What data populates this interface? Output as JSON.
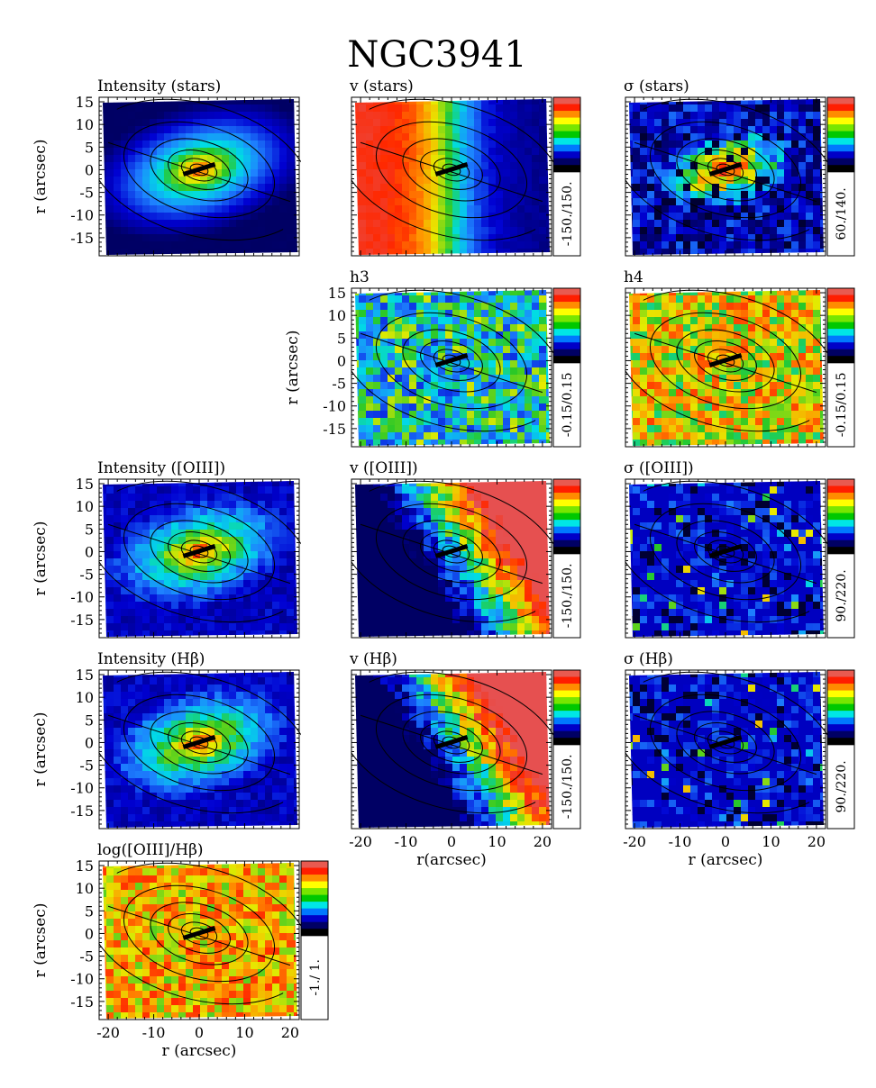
{
  "figure_title": "NGC3941",
  "colorbar_colors": [
    "#ffffff",
    "#e85a50",
    "#ff1e00",
    "#ff8c00",
    "#ffff00",
    "#78e600",
    "#00c800",
    "#00e6e6",
    "#0078ff",
    "#0000c8",
    "#000064",
    "#000000"
  ],
  "chart_data": [
    {
      "type": "heatmap",
      "title": "Intensity (stars)",
      "map": "intensity",
      "ylabel": "r (arcsec)",
      "xlabel": "",
      "range_label": "",
      "xlim": [
        -22,
        22
      ],
      "ylim": [
        -19,
        16
      ],
      "xticks": [],
      "yticks": [
        "15",
        "10",
        "5",
        "0",
        "-5",
        "-10",
        "-15"
      ]
    },
    {
      "type": "heatmap",
      "title": "v (stars)",
      "map": "velocity",
      "ylabel": "",
      "xlabel": "",
      "range_label": "-150./150.",
      "xlim": [
        -22,
        22
      ],
      "ylim": [
        -19,
        16
      ],
      "xticks": [],
      "yticks": []
    },
    {
      "type": "heatmap",
      "title": "σ (stars)",
      "map": "sigma",
      "ylabel": "",
      "xlabel": "",
      "range_label": "60./140.",
      "xlim": [
        -22,
        22
      ],
      "ylim": [
        -19,
        16
      ],
      "xticks": [],
      "yticks": []
    },
    {
      "type": "heatmap",
      "title": "h3",
      "map": "h3",
      "ylabel": "r (arcsec)",
      "xlabel": "",
      "range_label": "-0.15/0.15",
      "xlim": [
        -22,
        22
      ],
      "ylim": [
        -19,
        16
      ],
      "xticks": [],
      "yticks": [
        "15",
        "10",
        "5",
        "0",
        "-5",
        "-10",
        "-15"
      ]
    },
    {
      "type": "heatmap",
      "title": "h4",
      "map": "h4",
      "ylabel": "",
      "xlabel": "",
      "range_label": "-0.15/0.15",
      "xlim": [
        -22,
        22
      ],
      "ylim": [
        -19,
        16
      ],
      "xticks": [],
      "yticks": []
    },
    {
      "type": "heatmap",
      "title": "Intensity ([OIII])",
      "map": "intensity_gas",
      "ylabel": "r (arcsec)",
      "xlabel": "",
      "range_label": "",
      "xlim": [
        -22,
        22
      ],
      "ylim": [
        -19,
        16
      ],
      "xticks": [],
      "yticks": [
        "15",
        "10",
        "5",
        "0",
        "-5",
        "-10",
        "-15"
      ]
    },
    {
      "type": "heatmap",
      "title": "v ([OIII])",
      "map": "velocity_gas",
      "ylabel": "",
      "xlabel": "",
      "range_label": "-150./150.",
      "xlim": [
        -22,
        22
      ],
      "ylim": [
        -19,
        16
      ],
      "xticks": [],
      "yticks": []
    },
    {
      "type": "heatmap",
      "title": "σ ([OIII])",
      "map": "sigma_gas",
      "ylabel": "",
      "xlabel": "",
      "range_label": "90./220.",
      "xlim": [
        -22,
        22
      ],
      "ylim": [
        -19,
        16
      ],
      "xticks": [],
      "yticks": []
    },
    {
      "type": "heatmap",
      "title": "Intensity (Hβ)",
      "map": "intensity_gas",
      "ylabel": "r (arcsec)",
      "xlabel": "",
      "range_label": "",
      "xlim": [
        -22,
        22
      ],
      "ylim": [
        -19,
        16
      ],
      "xticks": [],
      "yticks": [
        "15",
        "10",
        "5",
        "0",
        "-5",
        "-10",
        "-15"
      ]
    },
    {
      "type": "heatmap",
      "title": "v (Hβ)",
      "map": "velocity_gas",
      "ylabel": "",
      "xlabel": "r(arcsec)",
      "range_label": "-150./150.",
      "xlim": [
        -22,
        22
      ],
      "ylim": [
        -19,
        16
      ],
      "xticks": [
        "-20",
        "-10",
        "0",
        "10",
        "20"
      ],
      "yticks": []
    },
    {
      "type": "heatmap",
      "title": "σ (Hβ)",
      "map": "sigma_gas",
      "ylabel": "",
      "xlabel": "r (arcsec)",
      "range_label": "90./220.",
      "xlim": [
        -22,
        22
      ],
      "ylim": [
        -19,
        16
      ],
      "xticks": [
        "-20",
        "-10",
        "0",
        "10",
        "20"
      ],
      "yticks": []
    },
    {
      "type": "heatmap",
      "title": "log([OIII]/Hβ)",
      "map": "ratio",
      "ylabel": "r (arcsec)",
      "xlabel": "r (arcsec)",
      "range_label": "-1./ 1.",
      "xlim": [
        -22,
        22
      ],
      "ylim": [
        -19,
        16
      ],
      "xticks": [
        "-20",
        "-10",
        "0",
        "10",
        "20"
      ],
      "yticks": [
        "15",
        "10",
        "5",
        "0",
        "-5",
        "-10",
        "-15"
      ]
    }
  ]
}
